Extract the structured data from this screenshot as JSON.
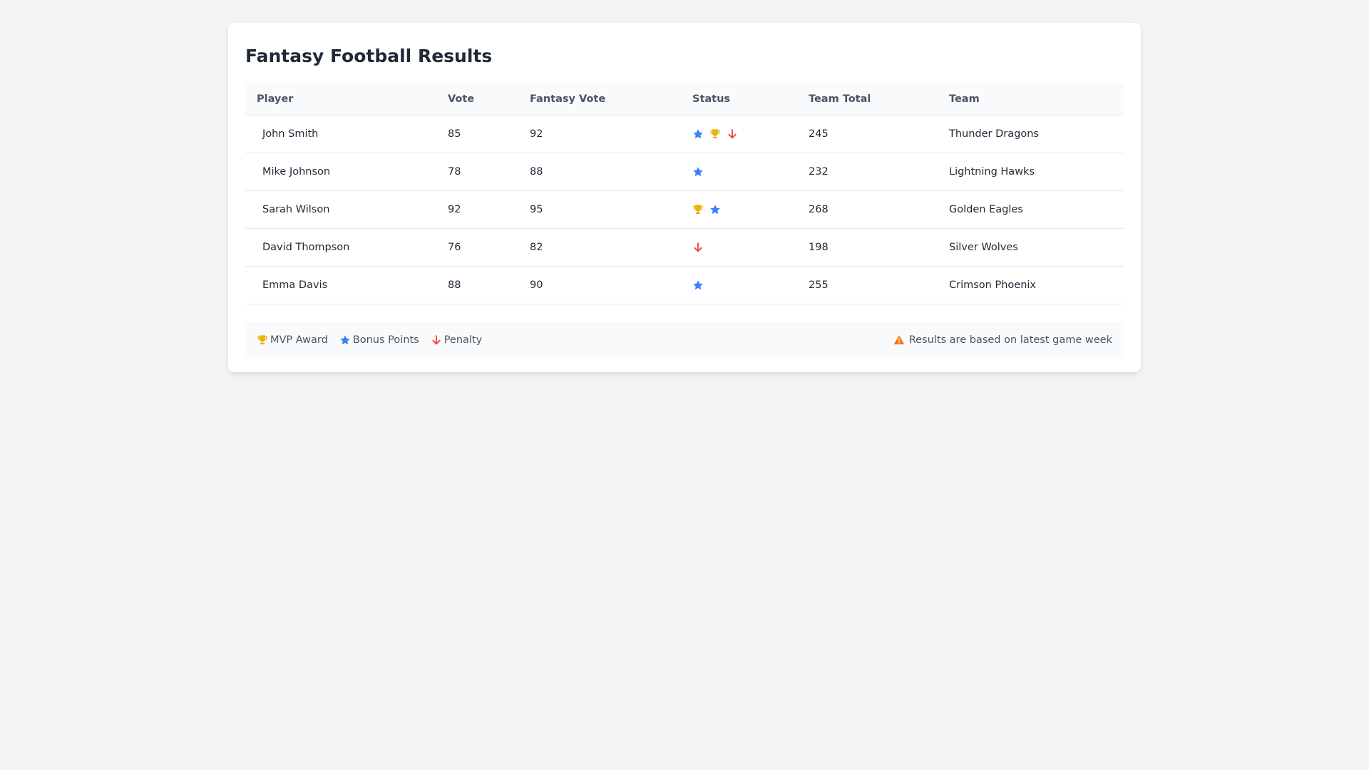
{
  "page": {
    "title": "Fantasy Football Results"
  },
  "table": {
    "headers": [
      "Player",
      "Vote",
      "Fantasy Vote",
      "Status",
      "Team Total",
      "Team"
    ],
    "rows": [
      {
        "player": "John Smith",
        "vote": "85",
        "fantasy_vote": "92",
        "status": [
          "star-icon",
          "trophy-icon",
          "arrow-down-icon"
        ],
        "team_total": "245",
        "team": "Thunder Dragons"
      },
      {
        "player": "Mike Johnson",
        "vote": "78",
        "fantasy_vote": "88",
        "status": [
          "star-icon"
        ],
        "team_total": "232",
        "team": "Lightning Hawks"
      },
      {
        "player": "Sarah Wilson",
        "vote": "92",
        "fantasy_vote": "95",
        "status": [
          "trophy-icon",
          "star-icon"
        ],
        "team_total": "268",
        "team": "Golden Eagles"
      },
      {
        "player": "David Thompson",
        "vote": "76",
        "fantasy_vote": "82",
        "status": [
          "arrow-down-icon"
        ],
        "team_total": "198",
        "team": "Silver Wolves"
      },
      {
        "player": "Emma Davis",
        "vote": "88",
        "fantasy_vote": "90",
        "status": [
          "star-icon"
        ],
        "team_total": "255",
        "team": "Crimson Phoenix"
      }
    ]
  },
  "legend": {
    "items": [
      {
        "icon": "trophy-icon",
        "label": "MVP Award"
      },
      {
        "icon": "star-icon",
        "label": "Bonus Points"
      },
      {
        "icon": "arrow-down-icon",
        "label": "Penalty"
      }
    ],
    "note_icon": "warning-icon",
    "note": "Results are based on latest game week"
  },
  "colors": {
    "star": "#3b82f6",
    "trophy": "#eab308",
    "penalty": "#ef4444",
    "warning": "#f97316"
  }
}
